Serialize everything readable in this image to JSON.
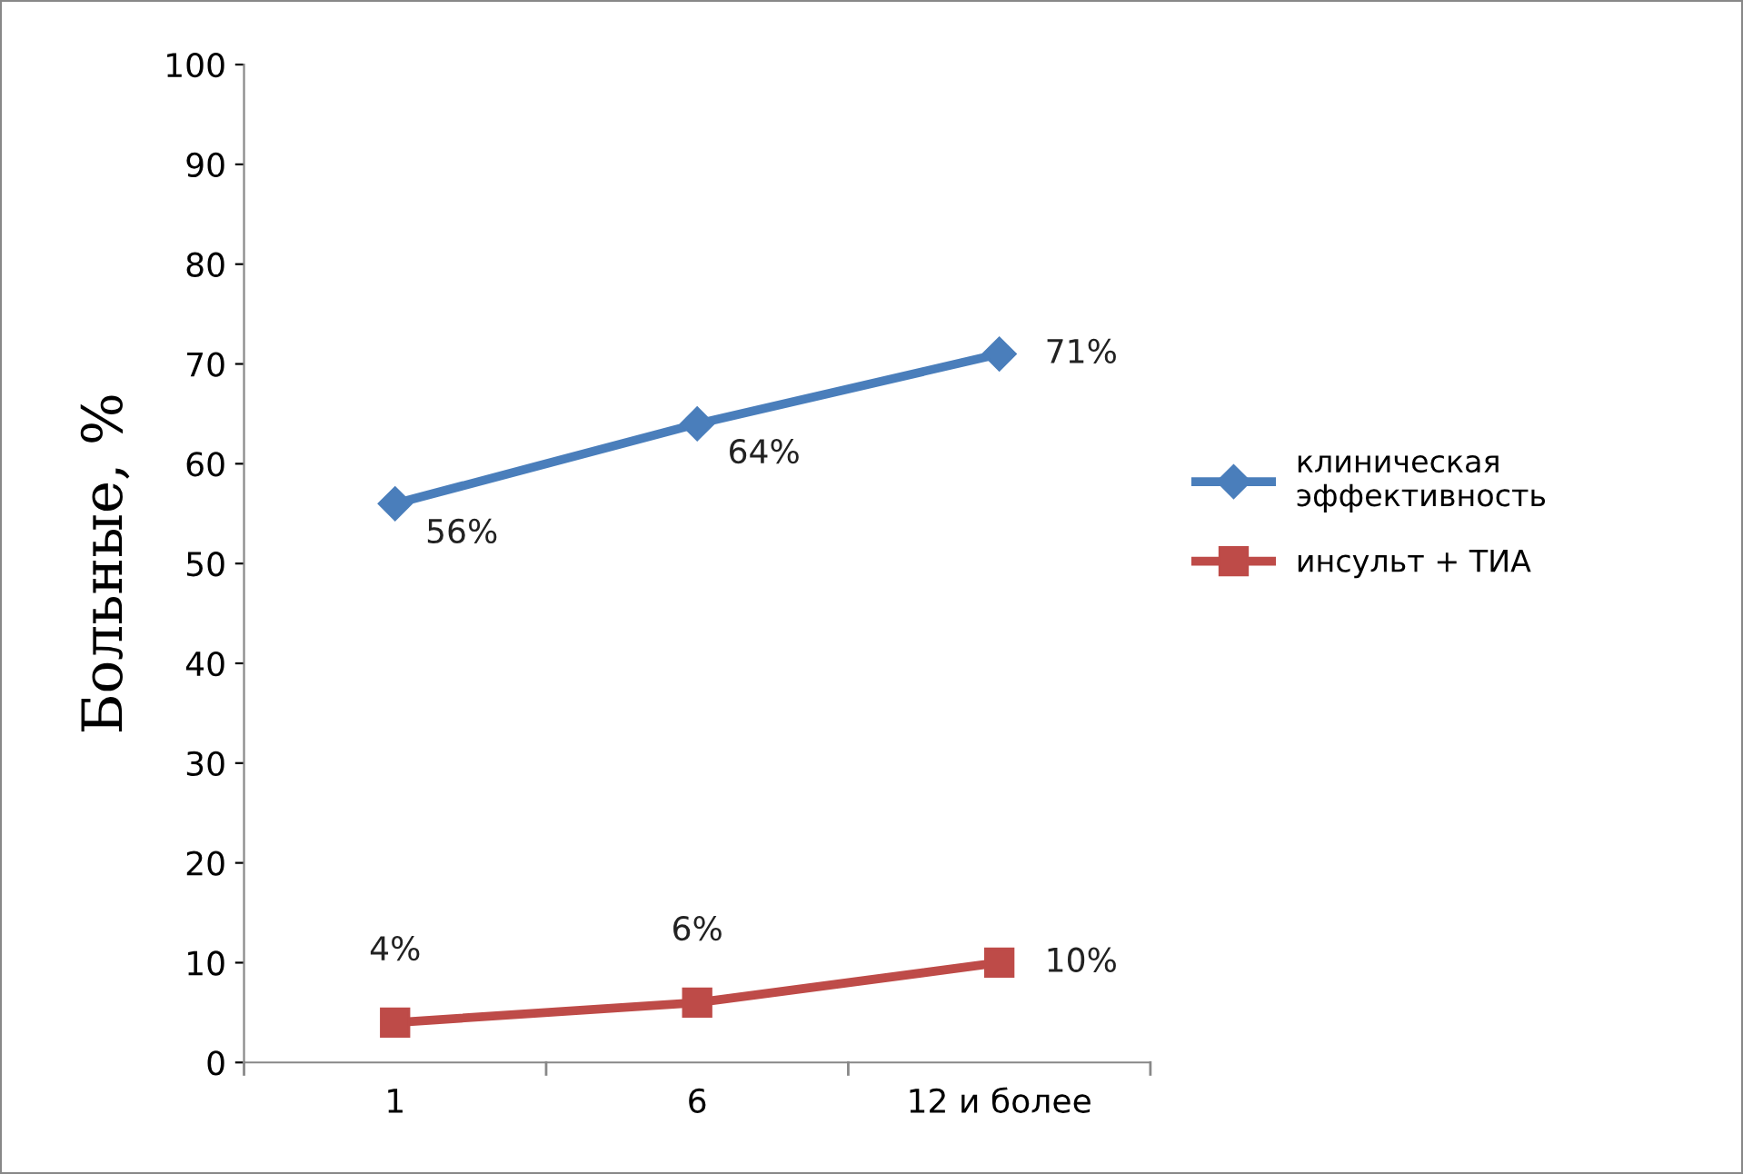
{
  "chart_data": {
    "type": "line",
    "ylabel": "Больные, %",
    "categories": [
      "1",
      "6",
      "12 и более"
    ],
    "series": [
      {
        "name": "клиническая эффективность",
        "color": "#4a7ebb",
        "marker": "diamond",
        "values": [
          56,
          64,
          71
        ],
        "value_labels": [
          "56%",
          "64%",
          "71%"
        ]
      },
      {
        "name": "инсульт + ТИА",
        "color": "#be4b48",
        "marker": "square",
        "values": [
          4,
          6,
          10
        ],
        "value_labels": [
          "4%",
          "6%",
          "10%"
        ]
      }
    ],
    "ylim": [
      0,
      100
    ],
    "yticks": [
      0,
      10,
      20,
      30,
      40,
      50,
      60,
      70,
      80,
      90,
      100
    ],
    "grid": false,
    "legend": "right",
    "line_style": "solid"
  }
}
